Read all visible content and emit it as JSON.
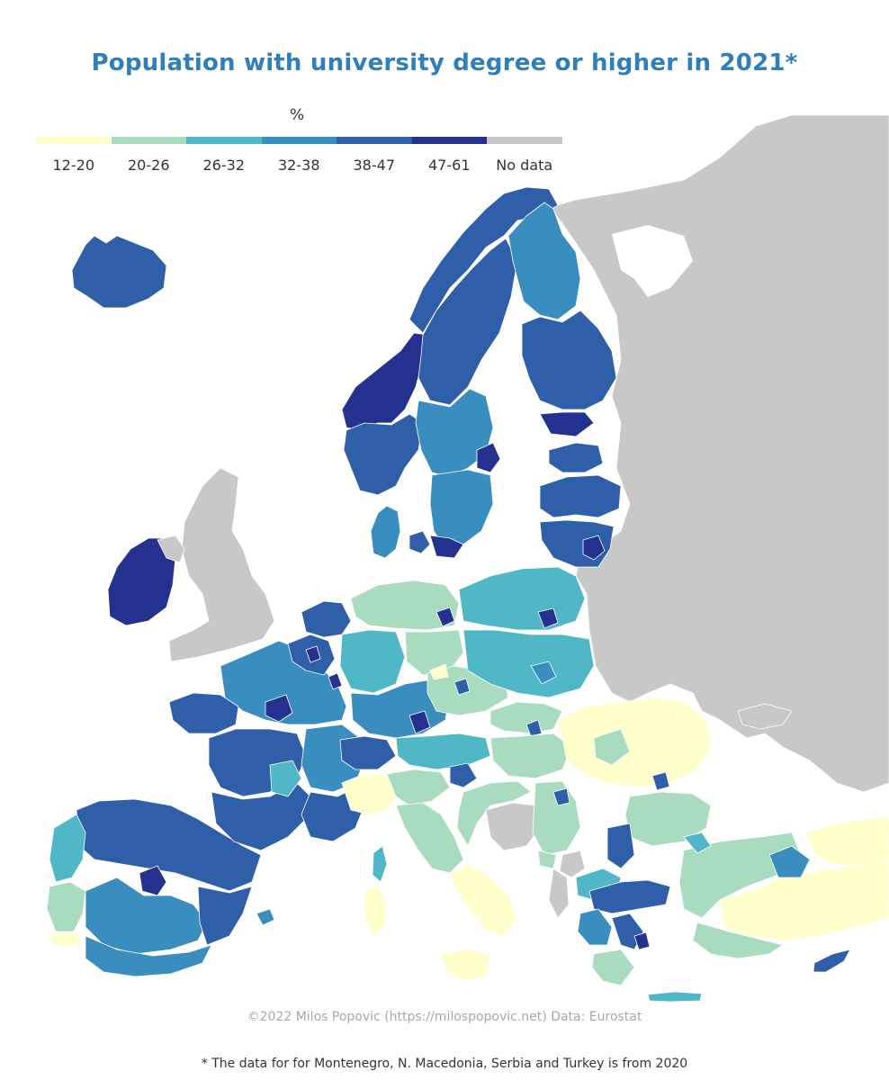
{
  "title": "Population with university degree or higher in 2021*",
  "legend": {
    "unit": "%",
    "classes": [
      {
        "label": "12-20",
        "color": "#ffffcc"
      },
      {
        "label": "20-26",
        "color": "#a9dcbf"
      },
      {
        "label": "26-32",
        "color": "#4fb7c6"
      },
      {
        "label": "32-38",
        "color": "#3a8dbf"
      },
      {
        "label": "38-47",
        "color": "#2f5fa8"
      },
      {
        "label": "47-61",
        "color": "#24318f"
      },
      {
        "label": "No data",
        "color": "#c8c8c8"
      }
    ]
  },
  "credit": "©2022 Milos Popovic (https://milospopovic.net) Data: Eurostat",
  "footnote": "* The data for for Montenegro, N. Macedonia, Serbia and Turkey is from 2020",
  "colors": {
    "title": "#2e7fba",
    "sea": "#ffffff",
    "no_data": "#c8c8c8"
  }
}
